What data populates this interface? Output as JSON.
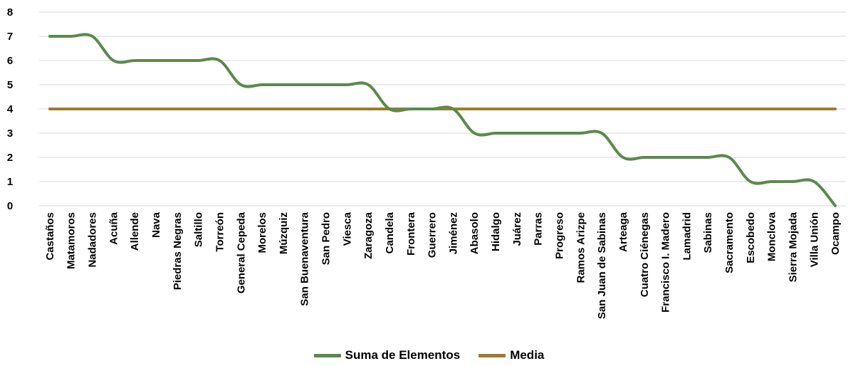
{
  "chart_data": {
    "type": "line",
    "categories": [
      "Castaños",
      "Matamoros",
      "Nadadores",
      "Acuña",
      "Allende",
      "Nava",
      "Piedras Negras",
      "Saltillo",
      "Torreón",
      "General Cepeda",
      "Morelos",
      "Múzquiz",
      "San Buenaventura",
      "San Pedro",
      "Viesca",
      "Zaragoza",
      "Candela",
      "Frontera",
      "Guerrero",
      "Jiménez",
      "Abasolo",
      "Hidalgo",
      "Juárez",
      "Parras",
      "Progreso",
      "Ramos Arizpe",
      "San Juan de Sabinas",
      "Arteaga",
      "Cuatro Ciénegas",
      "Francisco I. Madero",
      "Lamadrid",
      "Sabinas",
      "Sacramento",
      "Escobedo",
      "Monclova",
      "Sierra Mojada",
      "Villa Unión",
      "Ocampo"
    ],
    "series": [
      {
        "name": "Suma de Elementos",
        "color": "#5b8a4c",
        "values": [
          7,
          7,
          7,
          6,
          6,
          6,
          6,
          6,
          6,
          5,
          5,
          5,
          5,
          5,
          5,
          5,
          4,
          4,
          4,
          4,
          3,
          3,
          3,
          3,
          3,
          3,
          3,
          2,
          2,
          2,
          2,
          2,
          2,
          1,
          1,
          1,
          1,
          0
        ]
      },
      {
        "name": "Media",
        "color": "#a07a2e",
        "values": [
          4,
          4,
          4,
          4,
          4,
          4,
          4,
          4,
          4,
          4,
          4,
          4,
          4,
          4,
          4,
          4,
          4,
          4,
          4,
          4,
          4,
          4,
          4,
          4,
          4,
          4,
          4,
          4,
          4,
          4,
          4,
          4,
          4,
          4,
          4,
          4,
          4,
          4
        ]
      }
    ],
    "yticks": [
      "0",
      "1",
      "2",
      "3",
      "4",
      "5",
      "6",
      "7",
      "8"
    ],
    "ylim": [
      0,
      8
    ],
    "grid": true,
    "legend_position": "bottom"
  }
}
